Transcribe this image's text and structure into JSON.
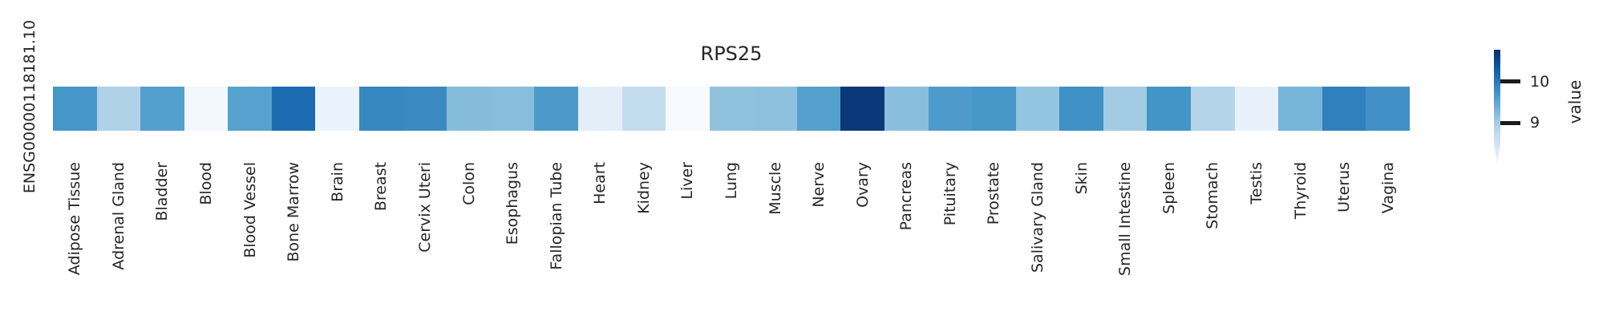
{
  "figure": {
    "title": "RPS25",
    "row_label": "ENSG00000118181.10"
  },
  "heatmap": {
    "row_label": "ENSG00000118181.10",
    "cells": [
      {
        "tissue": "Adipose Tissue",
        "color": "#4796c9",
        "value": 9.7
      },
      {
        "tissue": "Adrenal Gland",
        "color": "#b0d2e7",
        "value": 8.9
      },
      {
        "tissue": "Bladder",
        "color": "#539fcd",
        "value": 9.6
      },
      {
        "tissue": "Blood",
        "color": "#f2f7fd",
        "value": 8.0
      },
      {
        "tissue": "Blood Vessel",
        "color": "#57a1ce",
        "value": 9.55
      },
      {
        "tissue": "Bone Marrow",
        "color": "#1d6cb1",
        "value": 10.1
      },
      {
        "tissue": "Brain",
        "color": "#eaf3fb",
        "value": 8.1
      },
      {
        "tissue": "Breast",
        "color": "#3787c0",
        "value": 9.85
      },
      {
        "tissue": "Cervix Uteri",
        "color": "#3a89c1",
        "value": 9.8
      },
      {
        "tissue": "Colon",
        "color": "#85bcdb",
        "value": 9.2
      },
      {
        "tissue": "Esophagus",
        "color": "#88bedd",
        "value": 9.2
      },
      {
        "tissue": "Fallopian Tube",
        "color": "#4d9aca",
        "value": 9.65
      },
      {
        "tissue": "Heart",
        "color": "#e3eef8",
        "value": 8.2
      },
      {
        "tissue": "Kidney",
        "color": "#c3dcee",
        "value": 8.7
      },
      {
        "tissue": "Liver",
        "color": "#f6fafe",
        "value": 7.95
      },
      {
        "tissue": "Lung",
        "color": "#90c2de",
        "value": 9.15
      },
      {
        "tissue": "Muscle",
        "color": "#8cc0dd",
        "value": 9.15
      },
      {
        "tissue": "Nerve",
        "color": "#55a0cd",
        "value": 9.55
      },
      {
        "tissue": "Ovary",
        "color": "#0a3878",
        "value": 10.7
      },
      {
        "tissue": "Pancreas",
        "color": "#8abede",
        "value": 9.2
      },
      {
        "tissue": "Pituitary",
        "color": "#4e9bcb",
        "value": 9.6
      },
      {
        "tissue": "Prostate",
        "color": "#4897c9",
        "value": 9.65
      },
      {
        "tissue": "Salivary Gland",
        "color": "#93c4e0",
        "value": 9.1
      },
      {
        "tissue": "Skin",
        "color": "#3e90c5",
        "value": 9.75
      },
      {
        "tissue": "Small Intestine",
        "color": "#a3cbe4",
        "value": 9.0
      },
      {
        "tissue": "Spleen",
        "color": "#4394c7",
        "value": 9.7
      },
      {
        "tissue": "Stomach",
        "color": "#b4d4e9",
        "value": 8.85
      },
      {
        "tissue": "Testis",
        "color": "#e8f1fa",
        "value": 8.15
      },
      {
        "tissue": "Thyroid",
        "color": "#77b5d9",
        "value": 9.3
      },
      {
        "tissue": "Uterus",
        "color": "#3080bd",
        "value": 9.9
      },
      {
        "tissue": "Vagina",
        "color": "#4090c5",
        "value": 9.75
      }
    ]
  },
  "colorbar": {
    "label": "value",
    "tick_labels": [
      "10",
      "9"
    ],
    "top_color": "#08306b",
    "bottom_color": "#f7fbff"
  },
  "chart_data": {
    "type": "heatmap",
    "title": "RPS25",
    "rows": [
      "ENSG00000118181.10"
    ],
    "categories": [
      "Adipose Tissue",
      "Adrenal Gland",
      "Bladder",
      "Blood",
      "Blood Vessel",
      "Bone Marrow",
      "Brain",
      "Breast",
      "Cervix Uteri",
      "Colon",
      "Esophagus",
      "Fallopian Tube",
      "Heart",
      "Kidney",
      "Liver",
      "Lung",
      "Muscle",
      "Nerve",
      "Ovary",
      "Pancreas",
      "Pituitary",
      "Prostate",
      "Salivary Gland",
      "Skin",
      "Small Intestine",
      "Spleen",
      "Stomach",
      "Testis",
      "Thyroid",
      "Uterus",
      "Vagina"
    ],
    "values": [
      [
        9.7,
        8.9,
        9.6,
        8.0,
        9.55,
        10.1,
        8.1,
        9.85,
        9.8,
        9.2,
        9.2,
        9.65,
        8.2,
        8.7,
        7.95,
        9.15,
        9.15,
        9.55,
        10.7,
        9.2,
        9.6,
        9.65,
        9.1,
        9.75,
        9.0,
        9.7,
        8.85,
        8.15,
        9.3,
        9.9,
        9.75
      ]
    ],
    "colormap": "Blues",
    "value_range": [
      7.95,
      10.8
    ],
    "colorbar_label": "value",
    "colorbar_ticks": [
      9,
      10
    ],
    "legend_position": "right",
    "grid": false
  }
}
